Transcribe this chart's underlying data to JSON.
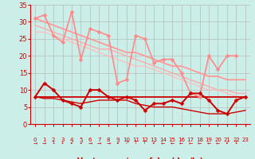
{
  "bg_color": "#cceee8",
  "grid_color": "#b0b0b0",
  "xlim": [
    -0.5,
    23.5
  ],
  "ylim": [
    0,
    35
  ],
  "yticks": [
    0,
    5,
    10,
    15,
    20,
    25,
    30,
    35
  ],
  "x_labels": [
    "0",
    "1",
    "2",
    "3",
    "4",
    "5",
    "6",
    "7",
    "8",
    "9",
    "10",
    "11",
    "12",
    "13",
    "14",
    "15",
    "16",
    "17",
    "18",
    "19",
    "20",
    "21",
    "22",
    "23"
  ],
  "series": [
    {
      "name": "pink_scatter",
      "color": "#ff8888",
      "lw": 1.2,
      "marker": "D",
      "markersize": 2.5,
      "values": [
        31,
        32,
        26,
        24,
        33,
        19,
        28,
        27,
        26,
        12,
        13,
        26,
        25,
        18,
        19,
        19,
        15,
        9,
        8,
        20,
        16,
        20,
        20,
        null
      ]
    },
    {
      "name": "pink_trend1",
      "color": "#ff9999",
      "lw": 1.3,
      "marker": null,
      "markersize": 0,
      "values": [
        31,
        30,
        29,
        28,
        27,
        26,
        25,
        24,
        23,
        22,
        21,
        21,
        20,
        19,
        18,
        17,
        17,
        16,
        15,
        14,
        14,
        13,
        13,
        13
      ]
    },
    {
      "name": "pink_trend2",
      "color": "#ffaaaa",
      "lw": 1.0,
      "marker": null,
      "markersize": 0,
      "values": [
        29,
        28,
        27,
        26,
        25,
        24,
        23,
        22,
        22,
        21,
        20,
        19,
        18,
        17,
        16,
        15,
        14,
        13,
        12,
        11,
        10,
        10,
        9,
        9
      ]
    },
    {
      "name": "pink_trend3",
      "color": "#ffbbbb",
      "lw": 0.9,
      "marker": null,
      "markersize": 0,
      "values": [
        27,
        27,
        26,
        25,
        24,
        23,
        22,
        21,
        20,
        19,
        18,
        17,
        17,
        16,
        15,
        14,
        13,
        12,
        11,
        10,
        10,
        9,
        8,
        8
      ]
    },
    {
      "name": "red_scatter",
      "color": "#cc0000",
      "lw": 1.4,
      "marker": "D",
      "markersize": 2.5,
      "values": [
        8,
        12,
        10,
        7,
        6,
        5,
        10,
        10,
        8,
        7,
        8,
        7,
        4,
        6,
        6,
        7,
        6,
        9,
        9,
        7,
        4,
        3,
        7,
        8
      ]
    },
    {
      "name": "red_flat",
      "color": "#cc0000",
      "lw": 1.3,
      "marker": null,
      "markersize": 0,
      "values": [
        8,
        8,
        8,
        8,
        8,
        8,
        8,
        8,
        8,
        8,
        8,
        8,
        8,
        8,
        8,
        8,
        8,
        8,
        8,
        8,
        8,
        8,
        8,
        8
      ]
    },
    {
      "name": "red_trend_down",
      "color": "#cc0000",
      "lw": 1.0,
      "marker": null,
      "markersize": 0,
      "values": [
        8,
        7.5,
        7.5,
        7,
        6.5,
        6,
        6.5,
        7,
        7,
        7,
        7,
        6,
        5.5,
        5,
        5,
        5,
        4.5,
        4,
        3.5,
        3,
        3,
        3,
        3.5,
        4
      ]
    }
  ],
  "wind_arrows": [
    "→",
    "→",
    "↓",
    "↓",
    "↙",
    "↙",
    "→",
    "→",
    "→",
    "↙",
    "↗",
    "↑",
    "↑",
    "↙",
    "←",
    "←",
    "←",
    "←",
    "←",
    "←",
    "←",
    "↙",
    "↓",
    ""
  ],
  "tick_color": "#cc0000",
  "axis_label": "Vent moyen/en rafales ( km/h )"
}
